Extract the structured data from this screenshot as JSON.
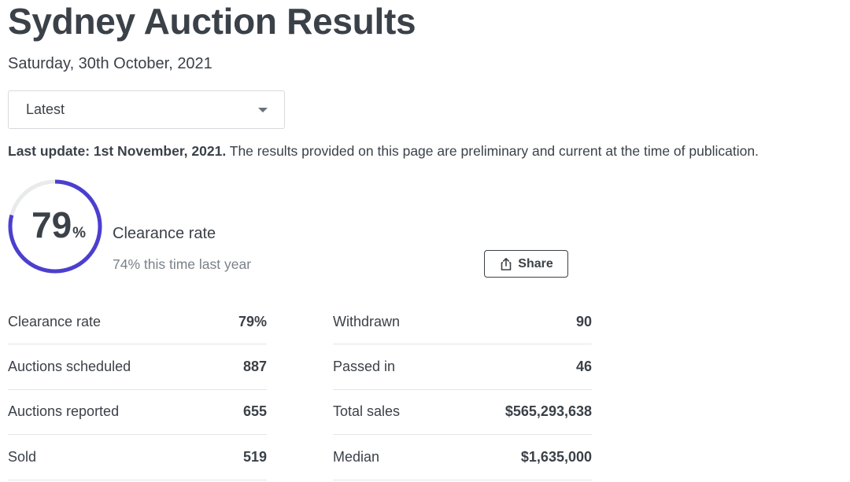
{
  "header": {
    "title": "Sydney Auction Results",
    "date": "Saturday, 30th October, 2021"
  },
  "filter": {
    "selected": "Latest"
  },
  "update": {
    "label": "Last update: 1st November, 2021.",
    "text": " The results provided on this page are preliminary and current at the time of publication."
  },
  "summary": {
    "clearance_value": "79",
    "clearance_unit": "%",
    "clearance_fraction": 0.79,
    "clearance_label": "Clearance rate",
    "last_year": "74% this time last year",
    "accent_color": "#4b3fcf",
    "track_color": "#e9eaec"
  },
  "share": {
    "label": "Share",
    "icon": "share-icon"
  },
  "stats_left": [
    {
      "label": "Clearance rate",
      "value": "79%"
    },
    {
      "label": "Auctions scheduled",
      "value": "887"
    },
    {
      "label": "Auctions reported",
      "value": "655"
    },
    {
      "label": "Sold",
      "value": "519"
    }
  ],
  "stats_right": [
    {
      "label": "Withdrawn",
      "value": "90"
    },
    {
      "label": "Passed in",
      "value": "46"
    },
    {
      "label": "Total sales",
      "value": "$565,293,638"
    },
    {
      "label": "Median",
      "value": "$1,635,000"
    }
  ]
}
